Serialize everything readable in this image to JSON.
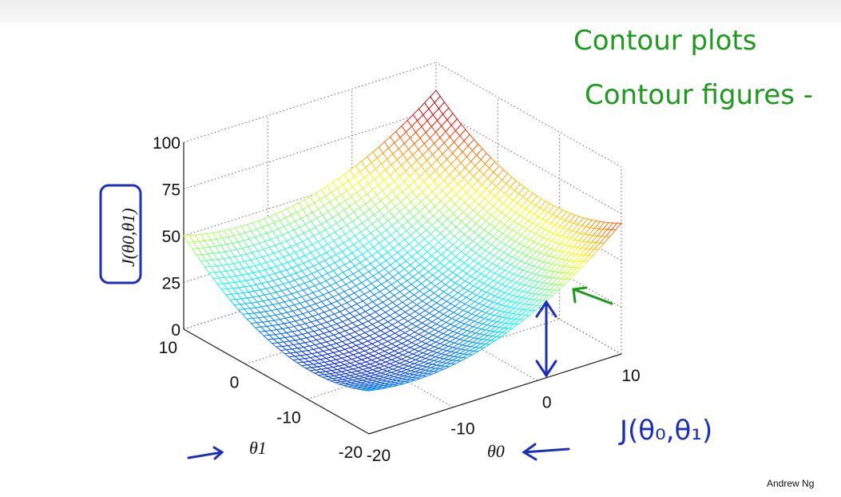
{
  "chart_data": {
    "type": "surface",
    "function": "bowl-shaped cost function J(θ0, θ1)",
    "xlabel": "θ0",
    "ylabel": "θ1",
    "zlabel": "J(θ0,θ1)",
    "x_ticks": [
      "-20",
      "-10",
      "0",
      "10"
    ],
    "y_ticks": [
      "-20",
      "-10",
      "0",
      "10"
    ],
    "z_ticks": [
      "0",
      "25",
      "50",
      "75",
      "100"
    ],
    "xlim": [
      -20,
      10
    ],
    "ylim": [
      -20,
      10
    ],
    "zlim": [
      0,
      100
    ],
    "corner_values": [
      {
        "theta0": -20,
        "theta1": -20,
        "J": 23
      },
      {
        "theta0": 10,
        "theta1": -20,
        "J": 70
      },
      {
        "theta0": 10,
        "theta1": 10,
        "J": 85
      },
      {
        "theta0": -20,
        "theta1": 10,
        "J": 50
      }
    ],
    "minimum": {
      "theta0": -4,
      "theta1": -5,
      "J": 0
    },
    "grid": true,
    "colormap": "jet"
  },
  "annotations": {
    "green_line1": "Contour plots",
    "green_line2": "Contour figures -",
    "blue_formula": "J(θ₀,θ₁)"
  },
  "footer": {
    "credit": "Andrew Ng"
  }
}
